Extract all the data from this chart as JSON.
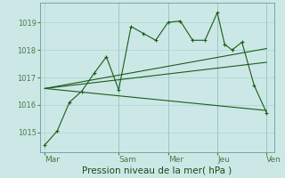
{
  "background_color": "#cce8e6",
  "grid_color": "#a8d4d0",
  "line_color": "#1a5c1a",
  "ylim": [
    1014.3,
    1019.7
  ],
  "yticks": [
    1015,
    1016,
    1017,
    1018,
    1019
  ],
  "ytick_fontsize": 6,
  "xlabel": "Pression niveau de la mer( hPa )",
  "xlabel_fontsize": 7.5,
  "xtick_labels": [
    "Mar",
    "Sam",
    "Mer",
    "Jeu",
    "Ven"
  ],
  "xtick_positions": [
    0,
    30,
    50,
    70,
    90
  ],
  "xlim": [
    -2,
    93
  ],
  "vlines_x": [
    30,
    50,
    70,
    90
  ],
  "series1_x": [
    0,
    5,
    10,
    15,
    20,
    25,
    30,
    35,
    40,
    45,
    50,
    55,
    60,
    65,
    70,
    73,
    76,
    80,
    85,
    90
  ],
  "series1_y": [
    1014.55,
    1015.05,
    1016.1,
    1016.5,
    1017.15,
    1017.75,
    1016.55,
    1018.85,
    1018.6,
    1018.35,
    1019.0,
    1019.05,
    1018.35,
    1018.35,
    1019.35,
    1018.2,
    1018.0,
    1018.28,
    1016.7,
    1015.72
  ],
  "series2_x": [
    0,
    90
  ],
  "series2_y": [
    1016.6,
    1018.05
  ],
  "series3_x": [
    0,
    90
  ],
  "series3_y": [
    1016.6,
    1017.55
  ],
  "series4_x": [
    0,
    90
  ],
  "series4_y": [
    1016.6,
    1015.8
  ],
  "marker": "+",
  "markersize": 3.5,
  "linewidth": 0.8,
  "trend_linewidth": 0.8,
  "xtick_fontsize": 6.5
}
